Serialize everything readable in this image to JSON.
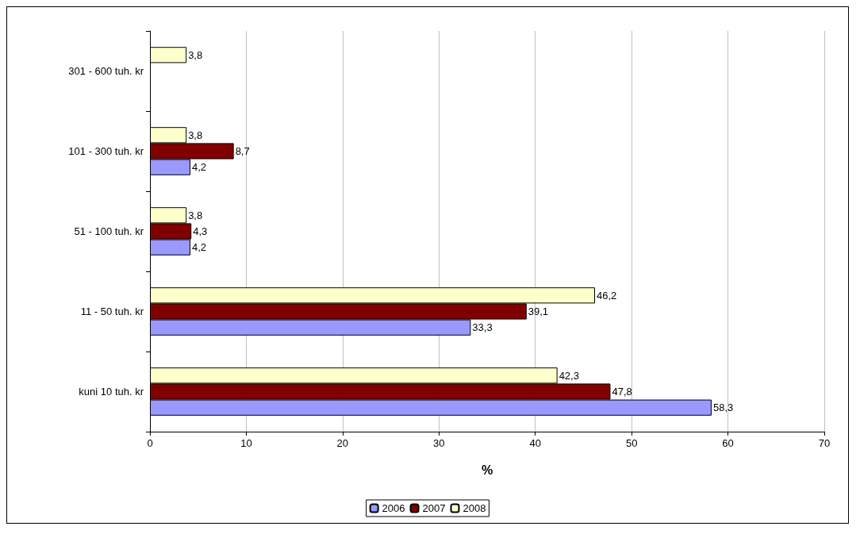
{
  "chart_data": {
    "type": "bar",
    "orientation": "horizontal",
    "xlabel": "%",
    "categories": [
      "301 - 600 tuh. kr",
      "101 - 300 tuh. kr",
      "51 - 100 tuh. kr",
      "11 - 50 tuh. kr",
      "kuni 10 tuh. kr"
    ],
    "series": [
      {
        "name": "2006",
        "color": "#9999ff",
        "values": [
          null,
          4.2,
          4.2,
          33.3,
          58.3
        ],
        "value_labels": [
          null,
          "4,2",
          "4,2",
          "33,3",
          "58,3"
        ]
      },
      {
        "name": "2007",
        "color": "#800000",
        "values": [
          null,
          8.7,
          4.3,
          39.1,
          47.8
        ],
        "value_labels": [
          null,
          "8,7",
          "4,3",
          "39,1",
          "47,8"
        ]
      },
      {
        "name": "2008",
        "color": "#ffffcc",
        "values": [
          3.8,
          3.8,
          3.8,
          46.2,
          42.3
        ],
        "value_labels": [
          "3,8",
          "3,8",
          "3,8",
          "46,2",
          "42,3"
        ]
      }
    ],
    "xlim": [
      0,
      70
    ],
    "xticks": [
      0,
      10,
      20,
      30,
      40,
      50,
      60,
      70
    ],
    "grid": "x",
    "legend": "bottom"
  }
}
